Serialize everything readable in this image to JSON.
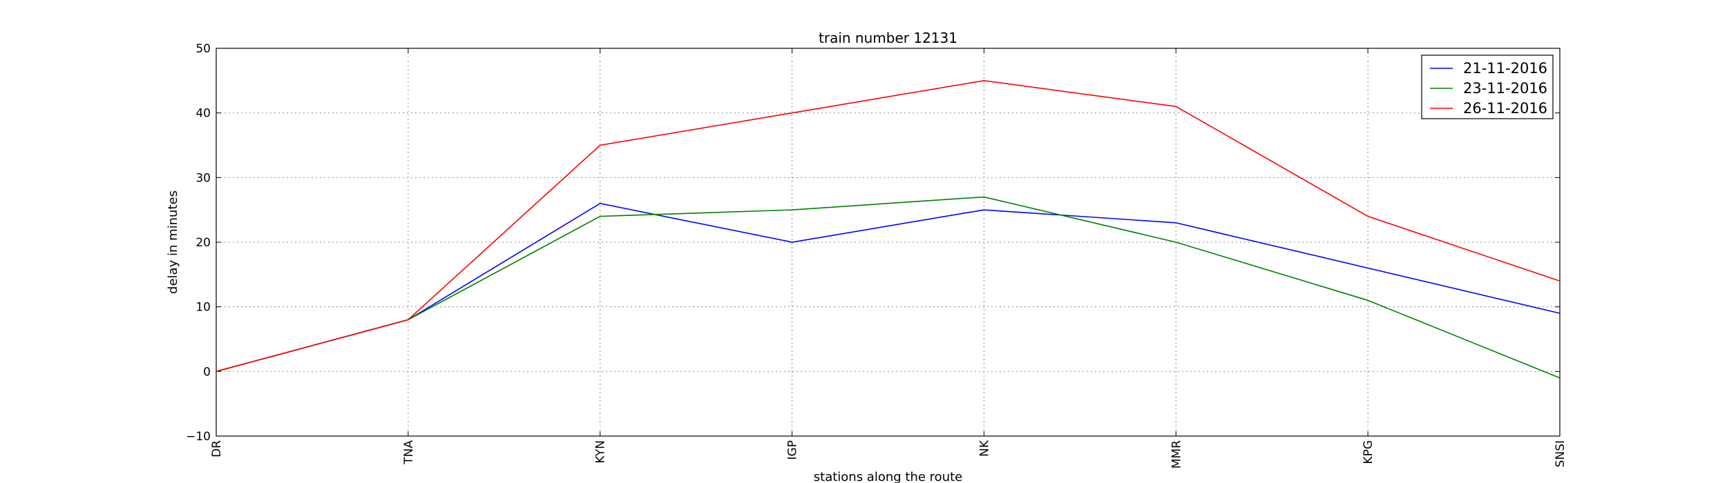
{
  "chart_data": {
    "type": "line",
    "title": "train number 12131",
    "xlabel": "stations along the route",
    "ylabel": "delay in minutes",
    "categories": [
      "DR",
      "TNA",
      "KYN",
      "IGP",
      "NK",
      "MMR",
      "KPG",
      "SNSI"
    ],
    "ylim": [
      -10,
      50
    ],
    "yticks": [
      -10,
      0,
      10,
      20,
      30,
      40,
      50
    ],
    "grid": true,
    "legend_position": "top-right",
    "series": [
      {
        "name": "21-11-2016",
        "color": "#0000ff",
        "values": [
          0,
          8,
          26,
          20,
          25,
          23,
          16,
          9
        ]
      },
      {
        "name": "23-11-2016",
        "color": "#008000",
        "values": [
          0,
          8,
          24,
          25,
          27,
          20,
          11,
          -1
        ]
      },
      {
        "name": "26-11-2016",
        "color": "#ff0000",
        "values": [
          0,
          8,
          35,
          40,
          45,
          41,
          24,
          14
        ]
      }
    ]
  }
}
